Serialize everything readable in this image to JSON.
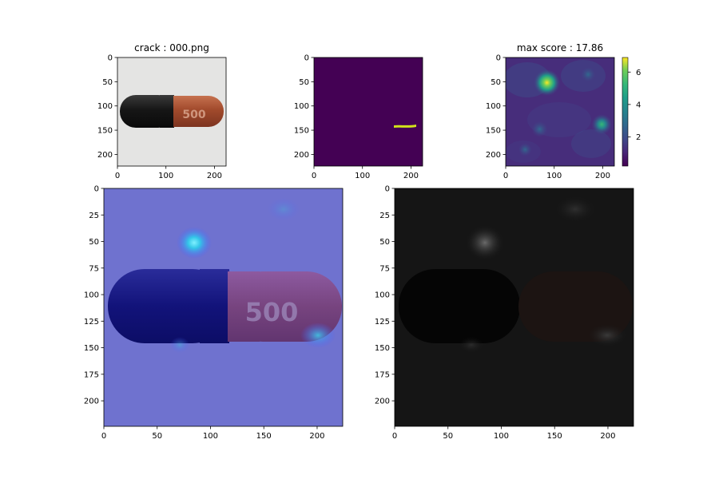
{
  "chart_data": [
    {
      "type": "image",
      "title": "crack : 000.png",
      "content": "capsule photo",
      "xlim": [
        0,
        224
      ],
      "ylim": [
        224,
        0
      ],
      "xticks": [
        0,
        100,
        200
      ],
      "yticks": [
        0,
        50,
        100,
        150,
        200
      ],
      "capsule_label": "500"
    },
    {
      "type": "heatmap",
      "title": "",
      "content": "ground-truth mask",
      "xlim": [
        0,
        224
      ],
      "ylim": [
        224,
        0
      ],
      "xticks": [
        0,
        100,
        200
      ],
      "yticks": [
        0,
        50,
        100,
        150,
        200
      ],
      "mask_segment": {
        "x": [
          165,
          210
        ],
        "y": 140
      },
      "colors": {
        "background": "#440154",
        "mask": "#d2e21b"
      }
    },
    {
      "type": "heatmap",
      "title": "max score : 17.86",
      "content": "anomaly score map",
      "xlim": [
        0,
        224
      ],
      "ylim": [
        224,
        0
      ],
      "xticks": [
        0,
        100,
        200
      ],
      "yticks": [
        0,
        50,
        100,
        150,
        200
      ],
      "colorbar": {
        "ticks": [
          2,
          4,
          6
        ],
        "range": [
          0.2,
          6.9
        ],
        "colormap": "viridis"
      },
      "hotspots": [
        {
          "x": 85,
          "y": 52,
          "value": 6.6
        },
        {
          "x": 198,
          "y": 138,
          "value": 4.2
        },
        {
          "x": 70,
          "y": 148,
          "value": 2.4
        },
        {
          "x": 170,
          "y": 35,
          "value": 1.8
        },
        {
          "x": 40,
          "y": 190,
          "value": 1.4
        }
      ]
    },
    {
      "type": "image",
      "title": "",
      "content": "score overlay on capsule",
      "xlim": [
        0,
        224
      ],
      "ylim": [
        224,
        0
      ],
      "xticks": [
        0,
        50,
        100,
        150,
        200
      ],
      "yticks": [
        0,
        25,
        50,
        75,
        100,
        125,
        150,
        175,
        200
      ],
      "capsule_label": "500"
    },
    {
      "type": "image",
      "title": "",
      "content": "masked anomaly image",
      "xlim": [
        0,
        224
      ],
      "ylim": [
        224,
        0
      ],
      "xticks": [
        0,
        50,
        100,
        150,
        200
      ],
      "yticks": [
        0,
        25,
        50,
        75,
        100,
        125,
        150,
        175,
        200
      ]
    }
  ]
}
